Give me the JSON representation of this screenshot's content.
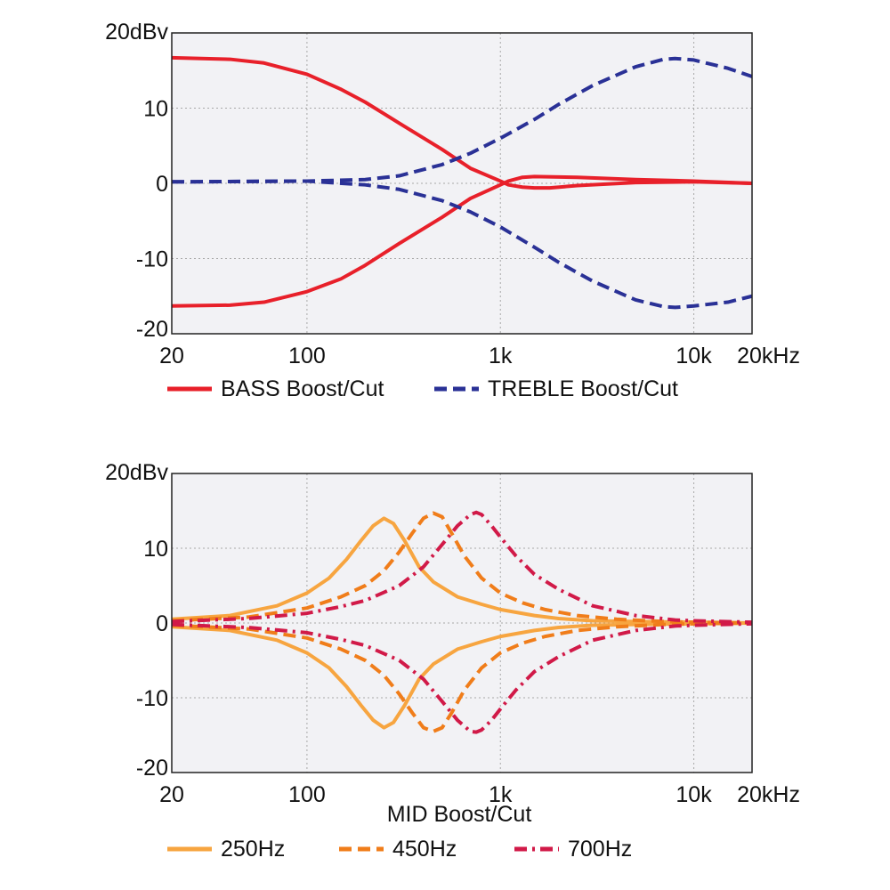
{
  "chart_data": [
    {
      "type": "line",
      "title": "",
      "xlabel": "",
      "ylabel": "",
      "x_scale": "log",
      "xlim": [
        20,
        20000
      ],
      "ylim": [
        -20,
        20
      ],
      "grid": true,
      "legend_position": "bottom",
      "x_ticks": [
        {
          "value": 20,
          "label": "20"
        },
        {
          "value": 100,
          "label": "100"
        },
        {
          "value": 1000,
          "label": "1k"
        },
        {
          "value": 10000,
          "label": "10k"
        },
        {
          "value": 20000,
          "label": "20kHz"
        }
      ],
      "y_ticks": [
        {
          "value": 20,
          "label": "20dBv"
        },
        {
          "value": 10,
          "label": "10"
        },
        {
          "value": 0,
          "label": "0"
        },
        {
          "value": -10,
          "label": "-10"
        },
        {
          "value": -20,
          "label": "-20"
        }
      ],
      "legend": [
        {
          "label": "BASS Boost/Cut",
          "color": "#e8202a",
          "dash": "solid"
        },
        {
          "label": "TREBLE Boost/Cut",
          "color": "#2a3196",
          "dash": "dashed"
        }
      ],
      "series": [
        {
          "name": "BASS Boost/Cut",
          "color": "#e8202a",
          "dash": "solid",
          "x": [
            20,
            40,
            60,
            100,
            150,
            200,
            300,
            500,
            700,
            1000,
            1100,
            1300,
            1500,
            1800,
            2500,
            5000,
            10000,
            20000
          ],
          "y": [
            16.7,
            16.5,
            16.0,
            14.5,
            12.5,
            10.8,
            8.0,
            4.5,
            2.0,
            0.3,
            -0.2,
            -0.5,
            -0.6,
            -0.6,
            -0.3,
            0.1,
            0.2,
            0.0
          ]
        },
        {
          "name": "BASS Boost/Cut",
          "color": "#e8202a",
          "dash": "solid",
          "x": [
            20,
            40,
            60,
            100,
            150,
            200,
            300,
            500,
            700,
            1000,
            1100,
            1300,
            1500,
            2500,
            5000,
            10000,
            20000
          ],
          "y": [
            -16.3,
            -16.2,
            -15.8,
            -14.4,
            -12.7,
            -10.9,
            -8.0,
            -4.5,
            -2.0,
            -0.2,
            0.3,
            0.8,
            0.9,
            0.8,
            0.5,
            0.3,
            0.0
          ]
        },
        {
          "name": "TREBLE Boost/Cut",
          "color": "#2a3196",
          "dash": "dashed",
          "x": [
            20,
            100,
            200,
            300,
            500,
            700,
            1000,
            1500,
            2000,
            3000,
            5000,
            7000,
            8000,
            10000,
            15000,
            20000
          ],
          "y": [
            0.2,
            0.3,
            0.5,
            1.0,
            2.5,
            4.0,
            6.0,
            8.5,
            10.5,
            13.0,
            15.5,
            16.5,
            16.6,
            16.4,
            15.3,
            14.2
          ]
        },
        {
          "name": "TREBLE Boost/Cut",
          "color": "#2a3196",
          "dash": "dashed",
          "x": [
            20,
            100,
            200,
            300,
            500,
            700,
            1000,
            1500,
            2000,
            3000,
            5000,
            7000,
            8000,
            10000,
            15000,
            20000
          ],
          "y": [
            0.2,
            0.3,
            -0.2,
            -0.8,
            -2.3,
            -3.8,
            -5.8,
            -8.5,
            -10.5,
            -13.0,
            -15.5,
            -16.4,
            -16.5,
            -16.3,
            -15.8,
            -15.0
          ]
        }
      ]
    },
    {
      "type": "line",
      "title": "",
      "xlabel": "MID Boost/Cut",
      "ylabel": "",
      "x_scale": "log",
      "xlim": [
        20,
        20000
      ],
      "ylim": [
        -20,
        20
      ],
      "grid": true,
      "legend_position": "bottom",
      "x_ticks": [
        {
          "value": 20,
          "label": "20"
        },
        {
          "value": 100,
          "label": "100"
        },
        {
          "value": 1000,
          "label": "1k"
        },
        {
          "value": 10000,
          "label": "10k"
        },
        {
          "value": 20000,
          "label": "20kHz"
        }
      ],
      "y_ticks": [
        {
          "value": 20,
          "label": "20dBv"
        },
        {
          "value": 10,
          "label": "10"
        },
        {
          "value": 0,
          "label": "0"
        },
        {
          "value": -10,
          "label": "-10"
        },
        {
          "value": -20,
          "label": "-20"
        }
      ],
      "legend": [
        {
          "label": "250Hz",
          "color": "#f7a540",
          "dash": "solid"
        },
        {
          "label": "450Hz",
          "color": "#f07d1a",
          "dash": "dashed"
        },
        {
          "label": "700Hz",
          "color": "#d11a48",
          "dash": "dashdot"
        }
      ],
      "series": [
        {
          "name": "250Hz",
          "color": "#f7a540",
          "dash": "solid",
          "x": [
            20,
            40,
            70,
            100,
            130,
            160,
            190,
            220,
            250,
            280,
            320,
            380,
            450,
            600,
            800,
            1000,
            1500,
            2000,
            3000,
            5000,
            10000,
            20000
          ],
          "y": [
            0.5,
            1.0,
            2.3,
            4.0,
            6.0,
            8.5,
            11.0,
            13.0,
            14.0,
            13.3,
            11.0,
            7.5,
            5.5,
            3.5,
            2.5,
            1.8,
            1.0,
            0.6,
            0.3,
            0.2,
            0.1,
            0.0
          ]
        },
        {
          "name": "250Hz",
          "color": "#f7a540",
          "dash": "solid",
          "x": [
            20,
            40,
            70,
            100,
            130,
            160,
            190,
            220,
            250,
            280,
            320,
            380,
            450,
            600,
            800,
            1000,
            1500,
            2000,
            3000,
            5000,
            10000,
            20000
          ],
          "y": [
            -0.5,
            -1.0,
            -2.3,
            -4.0,
            -6.0,
            -8.5,
            -11.0,
            -13.0,
            -14.0,
            -13.3,
            -11.0,
            -7.5,
            -5.5,
            -3.5,
            -2.5,
            -1.8,
            -1.0,
            -0.6,
            -0.3,
            -0.2,
            -0.1,
            0.0
          ]
        },
        {
          "name": "450Hz",
          "color": "#f07d1a",
          "dash": "dashed",
          "x": [
            20,
            50,
            100,
            150,
            200,
            250,
            300,
            350,
            400,
            450,
            500,
            560,
            650,
            800,
            1000,
            1300,
            1700,
            2500,
            4000,
            7000,
            10000,
            20000
          ],
          "y": [
            0.3,
            0.8,
            2.0,
            3.5,
            5.0,
            7.0,
            9.5,
            12.0,
            14.0,
            14.7,
            14.2,
            12.0,
            9.0,
            6.0,
            4.0,
            2.7,
            1.8,
            1.0,
            0.5,
            0.2,
            0.1,
            0.0
          ]
        },
        {
          "name": "450Hz",
          "color": "#f07d1a",
          "dash": "dashed",
          "x": [
            20,
            50,
            100,
            150,
            200,
            250,
            300,
            350,
            400,
            450,
            500,
            560,
            650,
            800,
            1000,
            1300,
            1700,
            2500,
            4000,
            7000,
            10000,
            20000
          ],
          "y": [
            -0.3,
            -0.8,
            -2.0,
            -3.5,
            -5.0,
            -7.0,
            -9.5,
            -12.0,
            -14.0,
            -14.5,
            -14.0,
            -12.0,
            -9.0,
            -6.0,
            -4.0,
            -2.7,
            -1.8,
            -1.0,
            -0.5,
            -0.2,
            -0.1,
            0.0
          ]
        },
        {
          "name": "700Hz",
          "color": "#d11a48",
          "dash": "dashdot",
          "x": [
            20,
            50,
            100,
            150,
            200,
            300,
            400,
            500,
            600,
            700,
            750,
            800,
            900,
            1000,
            1200,
            1500,
            2000,
            3000,
            5000,
            8000,
            10000,
            20000
          ],
          "y": [
            0.2,
            0.6,
            1.3,
            2.2,
            3.0,
            5.0,
            7.5,
            10.5,
            13.0,
            14.5,
            14.8,
            14.5,
            13.0,
            11.5,
            9.0,
            6.5,
            4.5,
            2.3,
            1.0,
            0.4,
            0.3,
            0.1
          ]
        },
        {
          "name": "700Hz",
          "color": "#d11a48",
          "dash": "dashdot",
          "x": [
            20,
            50,
            100,
            150,
            200,
            300,
            400,
            500,
            600,
            700,
            750,
            800,
            900,
            1000,
            1200,
            1500,
            2000,
            3000,
            5000,
            8000,
            10000,
            20000
          ],
          "y": [
            -0.2,
            -0.6,
            -1.3,
            -2.2,
            -3.0,
            -5.0,
            -7.5,
            -10.5,
            -13.0,
            -14.5,
            -14.6,
            -14.3,
            -13.0,
            -11.5,
            -9.0,
            -6.5,
            -4.5,
            -2.3,
            -1.0,
            -0.4,
            -0.3,
            -0.1
          ]
        }
      ]
    }
  ]
}
